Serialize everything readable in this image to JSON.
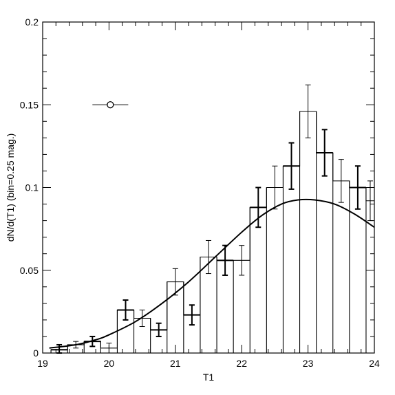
{
  "chart_data": {
    "type": "line",
    "xlabel": "T1",
    "ylabel": "dN/d(T1) (bin=0.25 mag.)",
    "xlim": [
      19,
      24
    ],
    "ylim": [
      0,
      0.2
    ],
    "grid": false,
    "x_ticks": [
      19,
      20,
      21,
      22,
      23,
      24
    ],
    "x_tick_labels": [
      "19",
      "20",
      "21",
      "22",
      "23",
      "24"
    ],
    "y_ticks": [
      0,
      0.05,
      0.1,
      0.15,
      0.2
    ],
    "y_tick_labels": [
      "0",
      "0.05",
      "0.1",
      "0.15",
      "0.2"
    ],
    "histogram": {
      "bin_width": 0.25,
      "bins": [
        {
          "x0": 19.125,
          "x1": 19.375,
          "y": 0.002,
          "err": 0.003
        },
        {
          "x0": 19.375,
          "x1": 19.625,
          "y": 0.005,
          "err": 0.002
        },
        {
          "x0": 19.625,
          "x1": 19.875,
          "y": 0.007,
          "err": 0.003
        },
        {
          "x0": 19.875,
          "x1": 20.125,
          "y": 0.003,
          "err": 0.003
        },
        {
          "x0": 20.125,
          "x1": 20.375,
          "y": 0.026,
          "err": 0.006
        },
        {
          "x0": 20.375,
          "x1": 20.625,
          "y": 0.021,
          "err": 0.005
        },
        {
          "x0": 20.625,
          "x1": 20.875,
          "y": 0.014,
          "err": 0.004
        },
        {
          "x0": 20.875,
          "x1": 21.125,
          "y": 0.043,
          "err": 0.008
        },
        {
          "x0": 21.125,
          "x1": 21.375,
          "y": 0.023,
          "err": 0.006
        },
        {
          "x0": 21.375,
          "x1": 21.625,
          "y": 0.058,
          "err": 0.01
        },
        {
          "x0": 21.625,
          "x1": 21.875,
          "y": 0.056,
          "err": 0.009
        },
        {
          "x0": 21.875,
          "x1": 22.125,
          "y": 0.056,
          "err": 0.009
        },
        {
          "x0": 22.125,
          "x1": 22.375,
          "y": 0.088,
          "err": 0.012
        },
        {
          "x0": 22.375,
          "x1": 22.625,
          "y": 0.1,
          "err": 0.013
        },
        {
          "x0": 22.625,
          "x1": 22.875,
          "y": 0.113,
          "err": 0.014
        },
        {
          "x0": 22.875,
          "x1": 23.125,
          "y": 0.146,
          "err": 0.016
        },
        {
          "x0": 23.125,
          "x1": 23.375,
          "y": 0.121,
          "err": 0.014
        },
        {
          "x0": 23.375,
          "x1": 23.625,
          "y": 0.104,
          "err": 0.013
        },
        {
          "x0": 23.625,
          "x1": 23.875,
          "y": 0.1,
          "err": 0.013
        },
        {
          "x0": 23.875,
          "x1": 24.0,
          "y": 0.092,
          "err": 0.012
        }
      ]
    },
    "model_curve": {
      "x": [
        19.1,
        19.5,
        19.8,
        20.0,
        20.4,
        20.8,
        21.2,
        21.6,
        22.0,
        22.3,
        22.6,
        22.85,
        23.1,
        23.4,
        23.7,
        24.0
      ],
      "y": [
        0.003,
        0.005,
        0.008,
        0.011,
        0.019,
        0.03,
        0.043,
        0.058,
        0.073,
        0.083,
        0.09,
        0.0925,
        0.0925,
        0.09,
        0.084,
        0.076
      ]
    },
    "reference_point": {
      "x": 20.02,
      "y": 0.15,
      "xerr": 0.27
    }
  }
}
